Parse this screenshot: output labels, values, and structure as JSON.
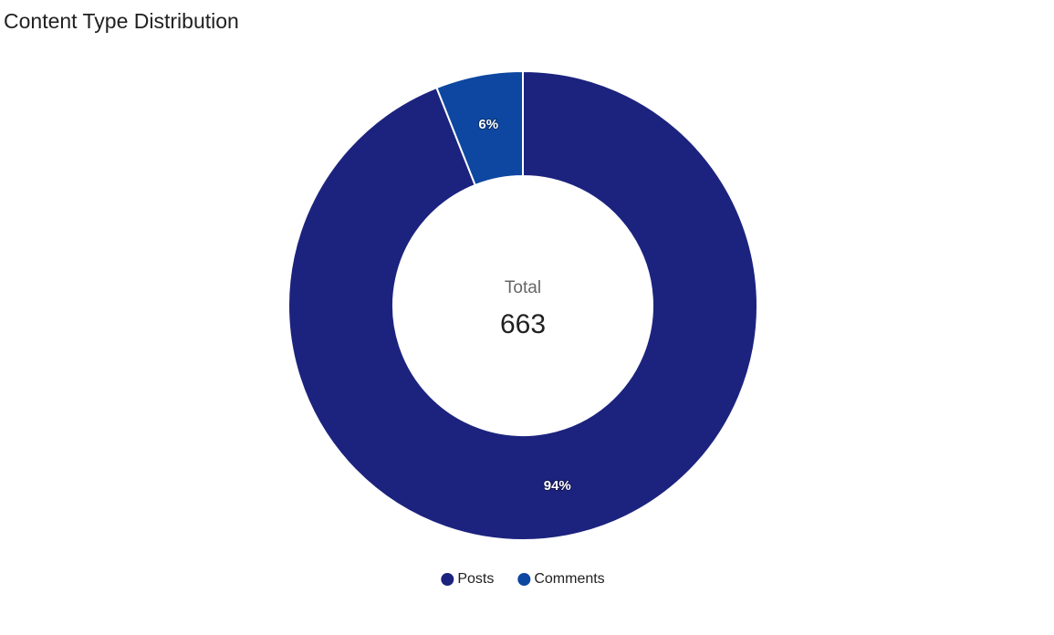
{
  "chart_data": {
    "type": "pie",
    "title": "Content Type Distribution",
    "categories": [
      "Posts",
      "Comments"
    ],
    "values": [
      94,
      6
    ],
    "value_labels": [
      "94%",
      "6%"
    ],
    "colors": [
      "#1c237e",
      "#0d47a1"
    ],
    "center_label": "Total",
    "center_value": 663,
    "legend": "bottom"
  }
}
